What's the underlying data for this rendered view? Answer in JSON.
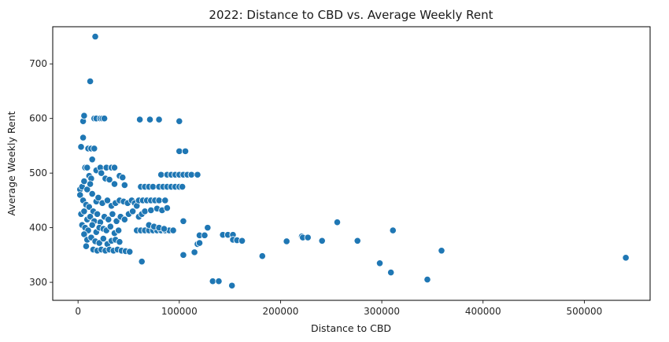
{
  "chart_data": {
    "type": "scatter",
    "title": "2022: Distance to CBD vs. Average Weekly Rent",
    "xlabel": "Distance to CBD",
    "ylabel": "Average Weekly Rent",
    "xlim": [
      -25000,
      565000
    ],
    "ylim": [
      267,
      768
    ],
    "xticks": [
      0,
      100000,
      200000,
      300000,
      400000,
      500000
    ],
    "yticks": [
      300,
      400,
      500,
      600,
      700
    ],
    "marker_color": "#1f77b4",
    "grid": false,
    "legend": "none",
    "series": [
      {
        "points": [
          [
            17000,
            750
          ],
          [
            12000,
            668
          ],
          [
            3000,
            548
          ],
          [
            5000,
            595
          ],
          [
            6000,
            605
          ],
          [
            5000,
            565
          ],
          [
            10000,
            545
          ],
          [
            13000,
            545
          ],
          [
            16000,
            545
          ],
          [
            14000,
            525
          ],
          [
            16000,
            600
          ],
          [
            18000,
            600
          ],
          [
            22000,
            600
          ],
          [
            24000,
            600
          ],
          [
            26000,
            600
          ],
          [
            61000,
            598
          ],
          [
            71000,
            598
          ],
          [
            80000,
            598
          ],
          [
            100000,
            595
          ],
          [
            100000,
            540
          ],
          [
            106000,
            540
          ],
          [
            7000,
            510
          ],
          [
            9000,
            510
          ],
          [
            11000,
            495
          ],
          [
            13000,
            490
          ],
          [
            18000,
            505
          ],
          [
            22000,
            510
          ],
          [
            28000,
            510
          ],
          [
            33000,
            510
          ],
          [
            36000,
            510
          ],
          [
            41000,
            495
          ],
          [
            44000,
            492
          ],
          [
            23000,
            500
          ],
          [
            27000,
            490
          ],
          [
            31000,
            488
          ],
          [
            36000,
            480
          ],
          [
            46000,
            478
          ],
          [
            2000,
            470
          ],
          [
            4000,
            475
          ],
          [
            6000,
            485
          ],
          [
            9000,
            470
          ],
          [
            12000,
            480
          ],
          [
            14000,
            462
          ],
          [
            2000,
            460
          ],
          [
            5000,
            450
          ],
          [
            8000,
            442
          ],
          [
            11000,
            438
          ],
          [
            15000,
            430
          ],
          [
            18000,
            448
          ],
          [
            20000,
            455
          ],
          [
            24000,
            445
          ],
          [
            29000,
            450
          ],
          [
            33000,
            440
          ],
          [
            37000,
            445
          ],
          [
            41000,
            450
          ],
          [
            45000,
            448
          ],
          [
            49000,
            445
          ],
          [
            53000,
            450
          ],
          [
            56000,
            445
          ],
          [
            3000,
            425
          ],
          [
            6000,
            430
          ],
          [
            9000,
            415
          ],
          [
            12000,
            420
          ],
          [
            16000,
            412
          ],
          [
            19000,
            425
          ],
          [
            22000,
            410
          ],
          [
            26000,
            420
          ],
          [
            30000,
            415
          ],
          [
            34000,
            425
          ],
          [
            38000,
            412
          ],
          [
            42000,
            420
          ],
          [
            46000,
            415
          ],
          [
            50000,
            425
          ],
          [
            54000,
            430
          ],
          [
            58000,
            440
          ],
          [
            60000,
            420
          ],
          [
            63000,
            425
          ],
          [
            4000,
            405
          ],
          [
            7000,
            400
          ],
          [
            10000,
            395
          ],
          [
            14000,
            405
          ],
          [
            18000,
            392
          ],
          [
            21000,
            400
          ],
          [
            25000,
            398
          ],
          [
            28000,
            395
          ],
          [
            32000,
            402
          ],
          [
            36000,
            390
          ],
          [
            40000,
            395
          ],
          [
            6000,
            388
          ],
          [
            9000,
            378
          ],
          [
            13000,
            382
          ],
          [
            17000,
            375
          ],
          [
            21000,
            372
          ],
          [
            25000,
            380
          ],
          [
            29000,
            370
          ],
          [
            33000,
            376
          ],
          [
            37000,
            378
          ],
          [
            41000,
            374
          ],
          [
            8000,
            366
          ],
          [
            15000,
            360
          ],
          [
            19000,
            358
          ],
          [
            23000,
            360
          ],
          [
            27000,
            358
          ],
          [
            31000,
            360
          ],
          [
            35000,
            358
          ],
          [
            39000,
            360
          ],
          [
            43000,
            358
          ],
          [
            47000,
            357
          ],
          [
            51000,
            356
          ],
          [
            58000,
            395
          ],
          [
            62000,
            395
          ],
          [
            66000,
            395
          ],
          [
            70000,
            395
          ],
          [
            74000,
            395
          ],
          [
            78000,
            395
          ],
          [
            82000,
            395
          ],
          [
            86000,
            395
          ],
          [
            90000,
            395
          ],
          [
            94000,
            395
          ],
          [
            60000,
            450
          ],
          [
            64000,
            450
          ],
          [
            68000,
            450
          ],
          [
            72000,
            450
          ],
          [
            76000,
            450
          ],
          [
            80000,
            450
          ],
          [
            86000,
            450
          ],
          [
            62000,
            475
          ],
          [
            66000,
            475
          ],
          [
            70000,
            475
          ],
          [
            74000,
            475
          ],
          [
            80000,
            475
          ],
          [
            84000,
            475
          ],
          [
            88000,
            475
          ],
          [
            92000,
            475
          ],
          [
            96000,
            475
          ],
          [
            100000,
            475
          ],
          [
            103000,
            475
          ],
          [
            82000,
            497
          ],
          [
            88000,
            497
          ],
          [
            92000,
            497
          ],
          [
            96000,
            497
          ],
          [
            100000,
            497
          ],
          [
            104000,
            497
          ],
          [
            108000,
            497
          ],
          [
            112000,
            497
          ],
          [
            118000,
            497
          ],
          [
            66000,
            430
          ],
          [
            72000,
            432
          ],
          [
            78000,
            435
          ],
          [
            83000,
            432
          ],
          [
            88000,
            436
          ],
          [
            70000,
            405
          ],
          [
            75000,
            402
          ],
          [
            80000,
            400
          ],
          [
            85000,
            398
          ],
          [
            63000,
            338
          ],
          [
            104000,
            350
          ],
          [
            104000,
            412
          ],
          [
            115000,
            355
          ],
          [
            118000,
            370
          ],
          [
            120000,
            372
          ],
          [
            120000,
            386
          ],
          [
            125000,
            386
          ],
          [
            128000,
            400
          ],
          [
            133000,
            302
          ],
          [
            139000,
            302
          ],
          [
            152000,
            294
          ],
          [
            143000,
            387
          ],
          [
            148000,
            387
          ],
          [
            153000,
            387
          ],
          [
            153000,
            378
          ],
          [
            157000,
            377
          ],
          [
            162000,
            376
          ],
          [
            182000,
            348
          ],
          [
            206000,
            375
          ],
          [
            221000,
            384
          ],
          [
            222000,
            382
          ],
          [
            227000,
            382
          ],
          [
            241000,
            376
          ],
          [
            256000,
            410
          ],
          [
            276000,
            376
          ],
          [
            298000,
            335
          ],
          [
            309000,
            318
          ],
          [
            311000,
            395
          ],
          [
            345000,
            305
          ],
          [
            359000,
            358
          ],
          [
            541000,
            345
          ]
        ]
      }
    ]
  }
}
